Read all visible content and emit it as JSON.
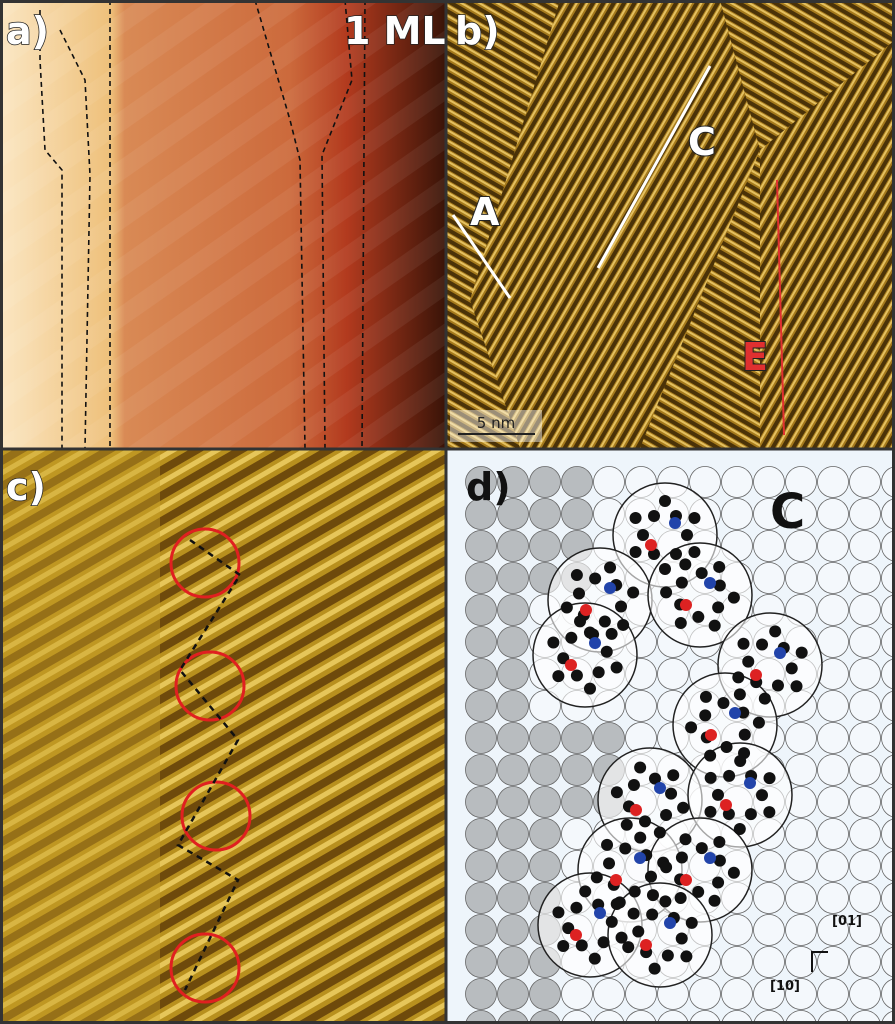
{
  "panels": {
    "a": {
      "label": "a)",
      "coverage": "1 ML"
    },
    "b": {
      "label": "b)",
      "domains": [
        "A",
        "C",
        "E"
      ],
      "scale_bar": "5 nm"
    },
    "c": {
      "label": "c)"
    },
    "d": {
      "label": "d)",
      "domain": "C",
      "directions": [
        "[01]",
        "[10]"
      ]
    }
  }
}
